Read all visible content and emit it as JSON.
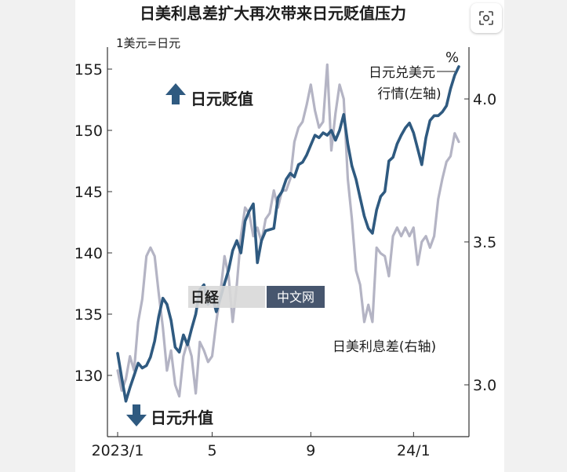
{
  "chart_data": {
    "type": "line",
    "title": "日美利息差扩大再次带来日元贬值压力",
    "left_unit": "1美元=日元",
    "right_unit": "%",
    "x_ticks": [
      "2023/1",
      "5",
      "9",
      "24/1"
    ],
    "left_axis": {
      "ticks": [
        130,
        135,
        140,
        145,
        150,
        155
      ],
      "ylim": [
        127,
        157
      ]
    },
    "right_axis": {
      "ticks": [
        "3.0",
        "3.5",
        "4.0"
      ],
      "ylim": [
        2.85,
        4.2
      ]
    },
    "grid": false,
    "series": [
      {
        "name": "日元兑美元行情(左轴)",
        "axis": "left",
        "color": "#2f5a80",
        "values": [
          131.8,
          129.8,
          127.9,
          129.0,
          130.0,
          131.0,
          130.6,
          130.8,
          131.5,
          132.8,
          134.8,
          136.3,
          135.8,
          134.5,
          132.3,
          131.9,
          133.3,
          132.5,
          133.8,
          135.0,
          137.0,
          137.4,
          135.8,
          136.5,
          135.2,
          136.3,
          137.5,
          138.6,
          140.2,
          141.0,
          140.0,
          142.6,
          143.4,
          144.0,
          139.2,
          141.0,
          141.8,
          141.9,
          142.0,
          144.5,
          145.0,
          146.0,
          146.5,
          146.2,
          147.2,
          147.4,
          148.0,
          148.8,
          149.6,
          149.4,
          149.8,
          149.6,
          150.0,
          149.2,
          150.0,
          151.3,
          148.9,
          147.1,
          146.0,
          144.5,
          143.0,
          142.0,
          141.6,
          143.5,
          144.6,
          145.0,
          147.5,
          147.8,
          148.9,
          149.6,
          150.2,
          150.6,
          149.8,
          148.5,
          147.2,
          149.4,
          150.8,
          151.2,
          151.2,
          151.5,
          152.0,
          153.4,
          154.5,
          155.2
        ]
      },
      {
        "name": "日美利息差(右轴)",
        "axis": "right",
        "color": "#b4b4c4",
        "values": [
          3.05,
          2.98,
          3.02,
          3.1,
          3.05,
          3.22,
          3.3,
          3.45,
          3.48,
          3.45,
          3.32,
          3.2,
          3.05,
          3.12,
          3.0,
          2.96,
          3.1,
          3.15,
          3.1,
          2.97,
          3.15,
          3.12,
          3.08,
          3.1,
          3.22,
          3.32,
          3.45,
          3.38,
          3.22,
          3.35,
          3.52,
          3.62,
          3.6,
          3.52,
          3.55,
          3.5,
          3.58,
          3.6,
          3.68,
          3.62,
          3.68,
          3.68,
          3.72,
          3.85,
          3.9,
          3.92,
          3.98,
          4.05,
          3.96,
          3.9,
          3.92,
          4.12,
          3.82,
          3.95,
          4.05,
          4.0,
          3.72,
          3.58,
          3.4,
          3.35,
          3.22,
          3.28,
          3.22,
          3.48,
          3.46,
          3.45,
          3.38,
          3.52,
          3.55,
          3.52,
          3.55,
          3.52,
          3.55,
          3.42,
          3.5,
          3.52,
          3.48,
          3.52,
          3.65,
          3.72,
          3.78,
          3.8,
          3.88,
          3.85
        ]
      }
    ],
    "annotations": {
      "yen_weaker": "日元贬值",
      "yen_stronger": "日元升值",
      "fx_label_1": "日元兑美元",
      "fx_label_2": "行情(左轴)",
      "spread_label": "日美利息差(右轴)"
    },
    "watermark": "日経 中文网"
  }
}
